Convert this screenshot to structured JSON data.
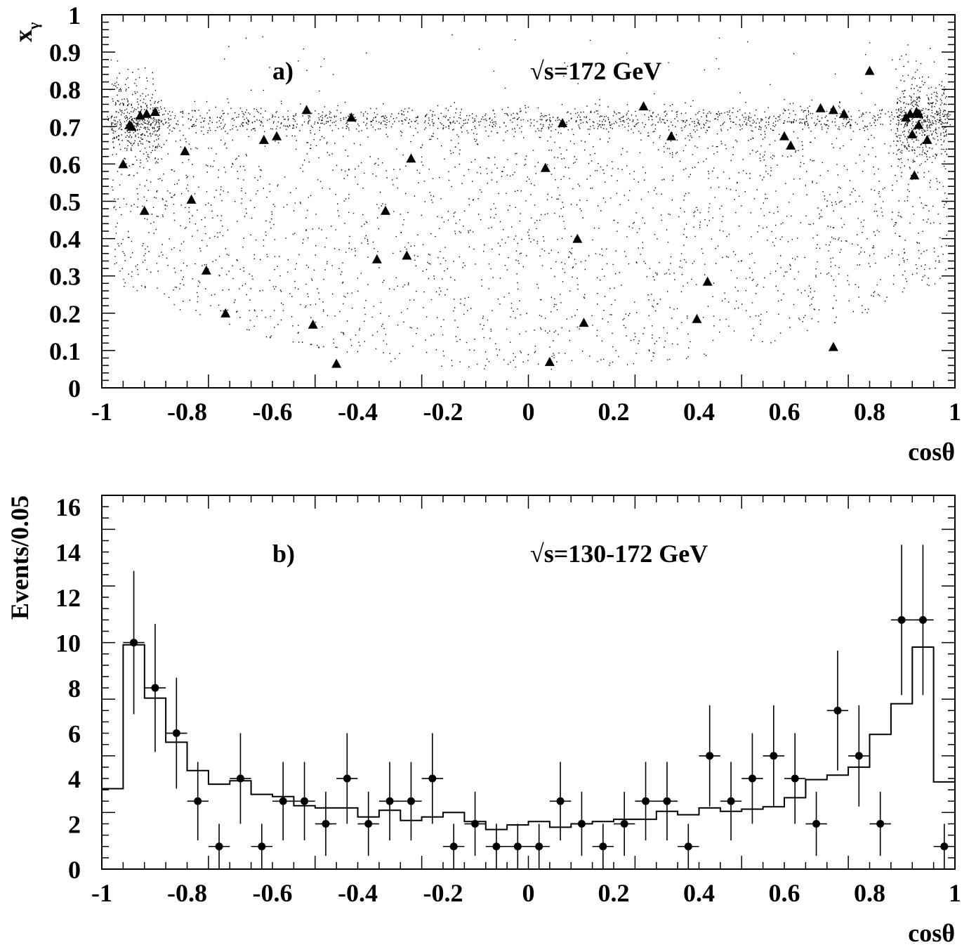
{
  "chart_data": [
    {
      "panel_id": "a",
      "type": "scatter",
      "panel_label": "a)",
      "annotation": "√s=172 GeV",
      "xlabel": "cosθ",
      "ylabel": "x",
      "ylabel_sub": "γ",
      "xlim": [
        -1,
        1
      ],
      "ylim": [
        0,
        1
      ],
      "x_ticks": [
        "-1",
        "-0.8",
        "-0.6",
        "-0.4",
        "-0.2",
        "0",
        "0.2",
        "0.4",
        "0.6",
        "0.8",
        "1"
      ],
      "y_ticks": [
        "0",
        "0.1",
        "0.2",
        "0.3",
        "0.4",
        "0.5",
        "0.6",
        "0.7",
        "0.8",
        "0.9",
        "1"
      ],
      "series": [
        {
          "marker": "triangle",
          "points": [
            [
              -0.95,
              0.6
            ],
            [
              -0.935,
              0.705
            ],
            [
              -0.93,
              0.7
            ],
            [
              -0.91,
              0.73
            ],
            [
              -0.895,
              0.735
            ],
            [
              -0.875,
              0.74
            ],
            [
              -0.9,
              0.475
            ],
            [
              -0.805,
              0.635
            ],
            [
              -0.79,
              0.505
            ],
            [
              -0.755,
              0.315
            ],
            [
              -0.71,
              0.2
            ],
            [
              -0.62,
              0.665
            ],
            [
              -0.59,
              0.675
            ],
            [
              -0.52,
              0.745
            ],
            [
              -0.505,
              0.17
            ],
            [
              -0.415,
              0.725
            ],
            [
              -0.45,
              0.065
            ],
            [
              -0.355,
              0.345
            ],
            [
              -0.335,
              0.475
            ],
            [
              -0.285,
              0.355
            ],
            [
              -0.275,
              0.615
            ],
            [
              0.04,
              0.59
            ],
            [
              0.05,
              0.07
            ],
            [
              0.08,
              0.71
            ],
            [
              0.115,
              0.4
            ],
            [
              0.13,
              0.175
            ],
            [
              0.27,
              0.755
            ],
            [
              0.335,
              0.675
            ],
            [
              0.395,
              0.185
            ],
            [
              0.42,
              0.285
            ],
            [
              0.6,
              0.675
            ],
            [
              0.615,
              0.65
            ],
            [
              0.685,
              0.75
            ],
            [
              0.715,
              0.745
            ],
            [
              0.74,
              0.735
            ],
            [
              0.715,
              0.11
            ],
            [
              0.8,
              0.85
            ],
            [
              0.885,
              0.725
            ],
            [
              0.895,
              0.735
            ],
            [
              0.9,
              0.68
            ],
            [
              0.91,
              0.74
            ],
            [
              0.915,
              0.735
            ],
            [
              0.915,
              0.705
            ],
            [
              0.905,
              0.57
            ],
            [
              0.935,
              0.665
            ]
          ]
        }
      ]
    },
    {
      "panel_id": "b",
      "type": "histogram",
      "panel_label": "b)",
      "annotation": "√s=130-172 GeV",
      "xlabel": "cosθ",
      "ylabel": "Events/0.05",
      "xlim": [
        -1,
        1
      ],
      "ylim": [
        0,
        16.5
      ],
      "x_ticks": [
        "-1",
        "-0.8",
        "-0.6",
        "-0.4",
        "-0.2",
        "0",
        "0.2",
        "0.4",
        "0.6",
        "0.8",
        "1"
      ],
      "y_ticks": [
        "0",
        "2",
        "4",
        "6",
        "8",
        "10",
        "12",
        "14",
        "16"
      ],
      "bin_width": 0.05,
      "data_points": {
        "x": [
          -0.925,
          -0.875,
          -0.825,
          -0.775,
          -0.725,
          -0.675,
          -0.625,
          -0.575,
          -0.525,
          -0.475,
          -0.425,
          -0.375,
          -0.325,
          -0.275,
          -0.225,
          -0.175,
          -0.125,
          -0.075,
          -0.025,
          0.025,
          0.075,
          0.125,
          0.175,
          0.225,
          0.275,
          0.325,
          0.375,
          0.425,
          0.475,
          0.525,
          0.575,
          0.625,
          0.675,
          0.725,
          0.775,
          0.825,
          0.875,
          0.925,
          0.975
        ],
        "y": [
          10,
          8,
          6,
          3,
          1,
          4,
          1,
          3,
          3,
          2,
          4,
          2,
          3,
          3,
          4,
          1,
          2,
          1,
          1,
          1,
          3,
          2,
          1,
          2,
          3,
          3,
          1,
          5,
          3,
          4,
          5,
          4,
          2,
          7,
          5,
          2,
          11,
          11,
          1
        ]
      },
      "model_histogram": {
        "bin_edges": [
          -1,
          -0.95,
          -0.9,
          -0.85,
          -0.8,
          -0.75,
          -0.7,
          -0.65,
          -0.6,
          -0.55,
          -0.5,
          -0.45,
          -0.4,
          -0.35,
          -0.3,
          -0.25,
          -0.2,
          -0.15,
          -0.1,
          -0.05,
          0,
          0.05,
          0.1,
          0.15,
          0.2,
          0.25,
          0.3,
          0.35,
          0.4,
          0.45,
          0.5,
          0.55,
          0.6,
          0.65,
          0.7,
          0.75,
          0.8,
          0.85,
          0.9,
          0.95,
          1
        ],
        "values": [
          3.55,
          9.9,
          7.55,
          5.6,
          4.35,
          3.75,
          3.9,
          3.3,
          3.2,
          2.8,
          2.7,
          2.7,
          2.3,
          2.6,
          2.15,
          2.3,
          2.5,
          2.1,
          1.75,
          1.95,
          2.1,
          1.85,
          2.0,
          2.1,
          2.2,
          2.2,
          2.55,
          2.4,
          2.7,
          2.55,
          2.65,
          2.75,
          3.15,
          3.95,
          4.15,
          4.5,
          5.95,
          7.3,
          9.8,
          3.85
        ]
      }
    }
  ]
}
